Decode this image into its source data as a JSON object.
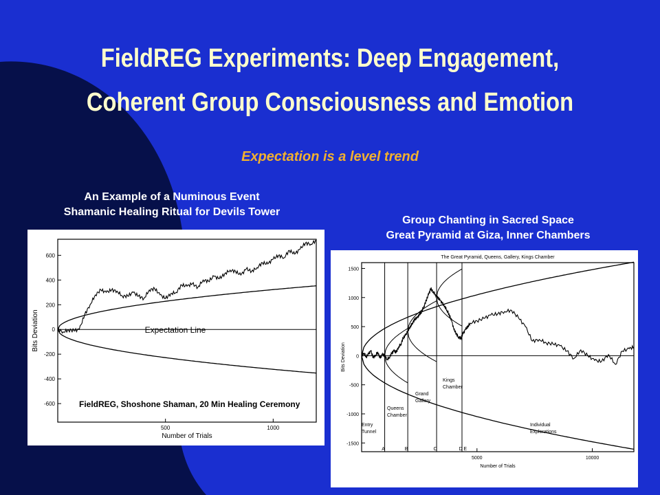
{
  "slide": {
    "title_line1": "FieldREG Experiments: Deep Engagement,",
    "title_line2": "Coherent Group Consciousness and Emotion",
    "subtitle": "Expectation is a level trend",
    "colors": {
      "background": "#1a2fd0",
      "arc": "#06104a",
      "title": "#ffffcc",
      "subtitle": "#f0b030",
      "caption": "#ffffff"
    }
  },
  "left": {
    "caption_line1": "An Example of a Numinous Event",
    "caption_line2": "Shamanic Healing Ritual for Devils Tower"
  },
  "right": {
    "caption_line1": "Group Chanting in Sacred Space",
    "caption_line2": "Great Pyramid at Giza, Inner Chambers"
  },
  "chart_data": [
    {
      "type": "line",
      "xlabel": "Number of Trials",
      "ylabel": "Bits Deviation",
      "xlim": [
        0,
        1200
      ],
      "ylim": [
        -750,
        730
      ],
      "x_ticks": [
        500,
        1000
      ],
      "y_ticks": [
        600,
        400,
        200,
        0,
        -200,
        -400,
        -600
      ],
      "annotation_in_plot": "FieldREG, Shoshone Shaman, 20 Min Healing Ceremony",
      "overlay_label": "Expectation Line",
      "envelope": "±1.96·√n bound, n = trials",
      "series": [
        {
          "x": [
            0,
            25,
            50,
            75,
            100,
            125,
            150,
            175,
            200,
            225,
            250,
            275,
            300,
            325,
            350,
            375,
            400,
            425,
            450,
            475,
            500,
            525,
            550,
            575,
            600,
            625,
            650,
            675,
            700,
            725,
            750,
            775,
            800,
            825,
            850,
            875,
            900,
            925,
            950,
            975,
            1000,
            1025,
            1050,
            1075,
            1100,
            1125,
            1150,
            1175,
            1200
          ],
          "values": [
            0,
            -20,
            -5,
            -10,
            0,
            120,
            200,
            280,
            320,
            300,
            320,
            310,
            270,
            270,
            300,
            270,
            250,
            320,
            330,
            280,
            250,
            290,
            300,
            360,
            350,
            370,
            340,
            400,
            390,
            430,
            410,
            450,
            480,
            470,
            440,
            490,
            470,
            500,
            540,
            530,
            570,
            600,
            580,
            640,
            610,
            650,
            700,
            690,
            720
          ]
        }
      ]
    },
    {
      "type": "line",
      "title": "The Great Pyramid, Queens, Gallery, Kings Chamber",
      "xlabel": "Number of Trials",
      "ylabel": "Bits Deviation",
      "xlim": [
        0,
        11800
      ],
      "ylim": [
        -1650,
        1600
      ],
      "x_ticks": [
        5000,
        10000
      ],
      "y_ticks": [
        1500,
        1000,
        500,
        0,
        -500,
        -1000,
        -1500
      ],
      "segment_markers": [
        "A",
        "B",
        "C",
        "D",
        "E"
      ],
      "segments": [
        {
          "label": "Entry Tunnel",
          "start": 0,
          "end": 1000
        },
        {
          "label": "Queens Chamber",
          "start": 1000,
          "end": 2000
        },
        {
          "label": "Grand Gallery",
          "start": 2000,
          "end": 3250
        },
        {
          "label": "Kings Chamber",
          "start": 3250,
          "end": 4350
        },
        {
          "label": "Individual Explorations",
          "start": 4350,
          "end": 11800
        }
      ],
      "series": [
        {
          "x": [
            0,
            100,
            200,
            300,
            400,
            500,
            600,
            700,
            800,
            900,
            1000,
            1100,
            1200,
            1300,
            1400,
            1500,
            1600,
            1700,
            1800,
            1900,
            2000,
            2100,
            2200,
            2300,
            2400,
            2500,
            2600,
            2700,
            2800,
            2900,
            3000,
            3100,
            3200,
            3300,
            3400,
            3500,
            3600,
            3700,
            3800,
            3900,
            4000,
            4100,
            4200,
            4300,
            4400,
            4500,
            4600,
            4700,
            5000,
            5300,
            5600,
            5900,
            6200,
            6500,
            6800,
            7100,
            7400,
            7700,
            8000,
            8300,
            8600,
            8900,
            9200,
            9500,
            9800,
            10100,
            10400,
            10700,
            11000,
            11300,
            11600,
            11800
          ],
          "values": [
            0,
            50,
            -20,
            30,
            80,
            -30,
            10,
            60,
            -40,
            20,
            0,
            -60,
            -30,
            40,
            80,
            60,
            150,
            200,
            300,
            350,
            420,
            500,
            560,
            620,
            650,
            700,
            760,
            850,
            950,
            1050,
            1150,
            1100,
            1050,
            1000,
            950,
            900,
            850,
            780,
            700,
            600,
            450,
            380,
            320,
            300,
            380,
            450,
            500,
            560,
            600,
            640,
            700,
            720,
            760,
            780,
            650,
            500,
            250,
            280,
            220,
            200,
            170,
            80,
            -50,
            100,
            0,
            -80,
            -100,
            20,
            -150,
            80,
            120,
            150
          ]
        }
      ]
    }
  ]
}
